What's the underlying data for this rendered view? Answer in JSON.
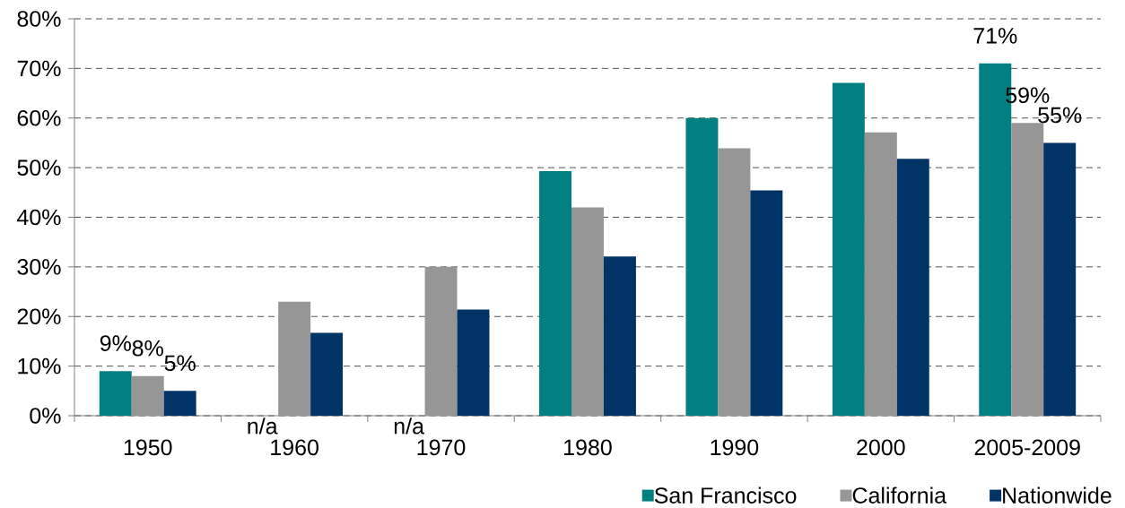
{
  "chart_data": {
    "type": "bar",
    "categories": [
      "1950",
      "1960",
      "1970",
      "1980",
      "1990",
      "2000",
      "2005-2009"
    ],
    "series": [
      {
        "name": "San Francisco",
        "color": "#008080",
        "values": [
          9,
          null,
          null,
          49.3,
          60,
          67.1,
          71
        ],
        "value_labels": [
          "9%",
          "n/a",
          "n/a",
          null,
          null,
          null,
          "71%"
        ]
      },
      {
        "name": "California",
        "color": "#969696",
        "values": [
          8,
          23,
          30,
          42,
          53.9,
          57.1,
          59
        ],
        "value_labels": [
          "8%",
          null,
          null,
          null,
          null,
          null,
          "59%"
        ]
      },
      {
        "name": "Nationwide",
        "color": "#003366",
        "values": [
          5,
          16.7,
          21.4,
          32.1,
          45.4,
          51.8,
          55
        ],
        "value_labels": [
          "5%",
          null,
          null,
          null,
          null,
          null,
          "55%"
        ]
      }
    ],
    "ylim": [
      0,
      80
    ],
    "yticks": [
      {
        "value": 0,
        "label": "0%"
      },
      {
        "value": 10,
        "label": "10%"
      },
      {
        "value": 20,
        "label": "20%"
      },
      {
        "value": 30,
        "label": "30%"
      },
      {
        "value": 40,
        "label": "40%"
      },
      {
        "value": 50,
        "label": "50%"
      },
      {
        "value": 60,
        "label": "60%"
      },
      {
        "value": 70,
        "label": "70%"
      },
      {
        "value": 80,
        "label": "80%"
      }
    ],
    "grid": "y",
    "legend": "bottom right"
  }
}
